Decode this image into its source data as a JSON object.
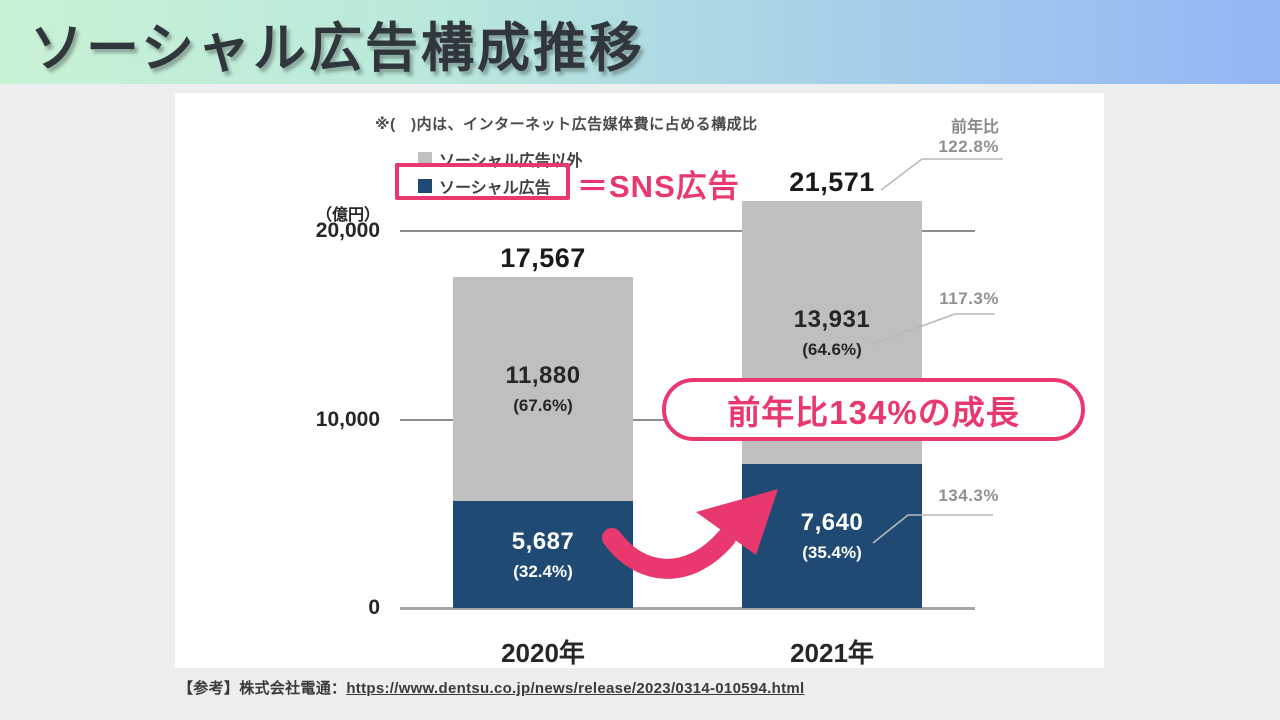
{
  "header": {
    "title": "ソーシャル広告構成推移"
  },
  "panel": {
    "note": "※(　)内は、インターネット広告媒体費に占める構成比",
    "yoy_header": "前年比",
    "legend": {
      "other": {
        "label": "ソーシャル広告以外",
        "color": "#bfbfbf"
      },
      "social": {
        "label": "ソーシャル広告",
        "color": "#1f4a73"
      },
      "sns_equiv": "＝SNS広告"
    },
    "unit": "（億円）"
  },
  "chart_data": {
    "type": "bar",
    "stacked": true,
    "title": "ソーシャル広告構成推移",
    "ylabel": "億円",
    "categories": [
      "2020年",
      "2021年"
    ],
    "ylim": [
      0,
      23000
    ],
    "yticks": [
      {
        "value": 20000,
        "label": "20,000"
      },
      {
        "value": 10000,
        "label": "10,000"
      },
      {
        "value": 0,
        "label": "0"
      }
    ],
    "grid": "horizontal",
    "legend_position": "top-left",
    "series": [
      {
        "name": "ソーシャル広告",
        "color": "#1f4a73",
        "values": [
          5687,
          7640
        ],
        "value_labels": [
          "5,687",
          "7,640"
        ],
        "share_labels": [
          "(32.4%)",
          "(35.4%)"
        ],
        "yoy_labels": [
          "",
          "134.3%"
        ]
      },
      {
        "name": "ソーシャル広告以外",
        "color": "#bfbfbf",
        "values": [
          11880,
          13931
        ],
        "value_labels": [
          "11,880",
          "13,931"
        ],
        "share_labels": [
          "(67.6%)",
          "(64.6%)"
        ],
        "yoy_labels": [
          "",
          "117.3%"
        ]
      }
    ],
    "totals": {
      "values": [
        17567,
        21571
      ],
      "value_labels": [
        "17,567",
        "21,571"
      ],
      "yoy_labels": [
        "",
        "122.8%"
      ]
    }
  },
  "annotations": {
    "growth_bubble": "前年比134%の成長"
  },
  "source": {
    "prefix": "【参考】株式会社電通：",
    "url": "https://www.dentsu.co.jp/news/release/2023/0314-010594.html"
  }
}
